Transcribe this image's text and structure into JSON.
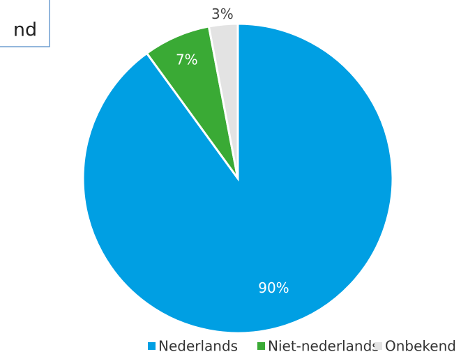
{
  "chart_data": {
    "type": "pie",
    "annotation": "nd",
    "categories": [
      "Nederlands",
      "Niet-nederlands",
      "Onbekend"
    ],
    "values": [
      90,
      7,
      3
    ],
    "value_labels": [
      "90%",
      "7%",
      "3%"
    ],
    "colors": [
      "#009fe3",
      "#3aaa35",
      "#e3e3e3"
    ],
    "legend": "bottom"
  }
}
